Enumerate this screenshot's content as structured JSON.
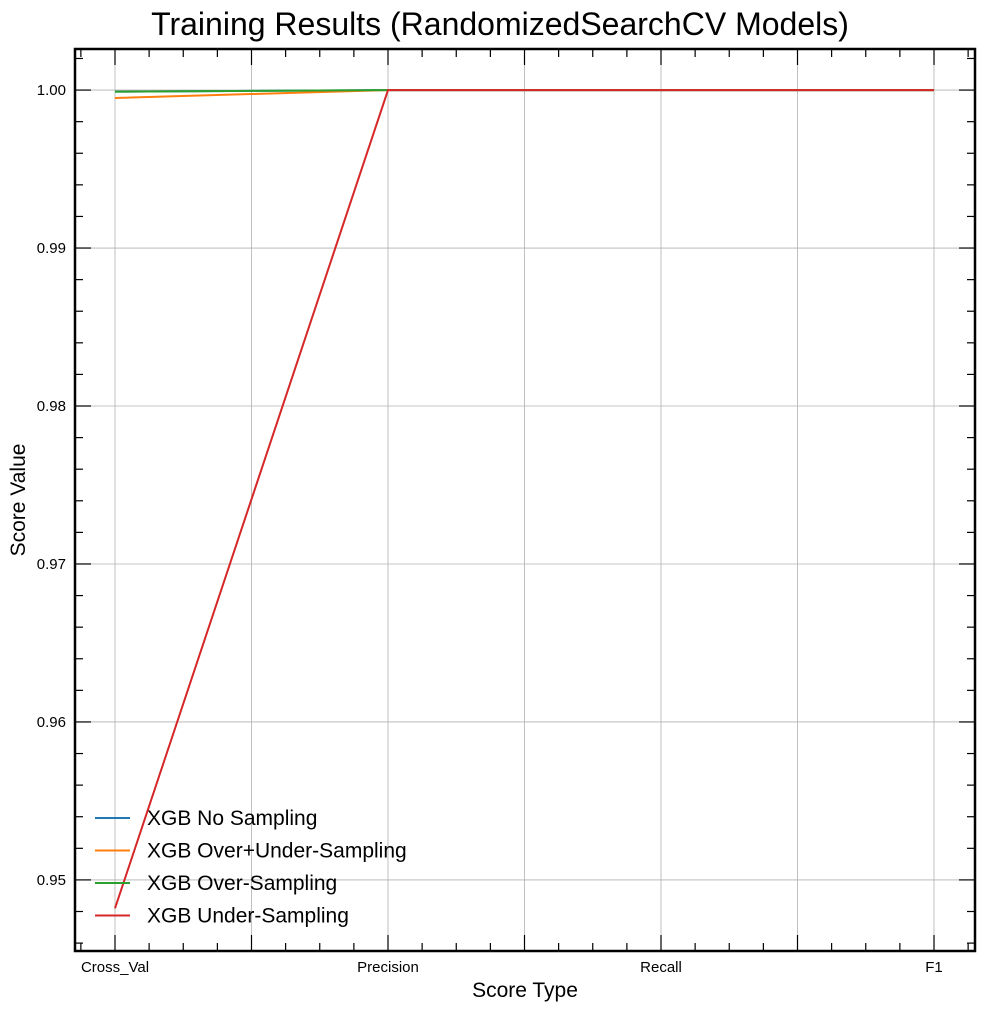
{
  "chart_data": {
    "type": "line",
    "title": "Training Results (RandomizedSearchCV Models)",
    "xlabel": "Score Type",
    "ylabel": "Score Value",
    "categories": [
      "Cross_Val",
      "Precision",
      "Recall",
      "F1"
    ],
    "y_ticks": [
      "0.95",
      "0.96",
      "0.97",
      "0.98",
      "0.99",
      "1.00"
    ],
    "ylim": [
      0.9455,
      1.0026
    ],
    "grid": true,
    "legend_position": "lower-left",
    "series": [
      {
        "name": "XGB No Sampling",
        "color": "#1f77b4",
        "values": [
          0.9999,
          1.0,
          1.0,
          1.0
        ]
      },
      {
        "name": "XGB Over+Under-Sampling",
        "color": "#ff7f0e",
        "values": [
          0.9995,
          1.0,
          1.0,
          1.0
        ]
      },
      {
        "name": "XGB Over-Sampling",
        "color": "#2ca02c",
        "values": [
          0.9999,
          1.0,
          1.0,
          1.0
        ]
      },
      {
        "name": "XGB Under-Sampling",
        "color": "#d62728",
        "values": [
          0.9482,
          1.0,
          1.0,
          1.0
        ]
      }
    ]
  }
}
